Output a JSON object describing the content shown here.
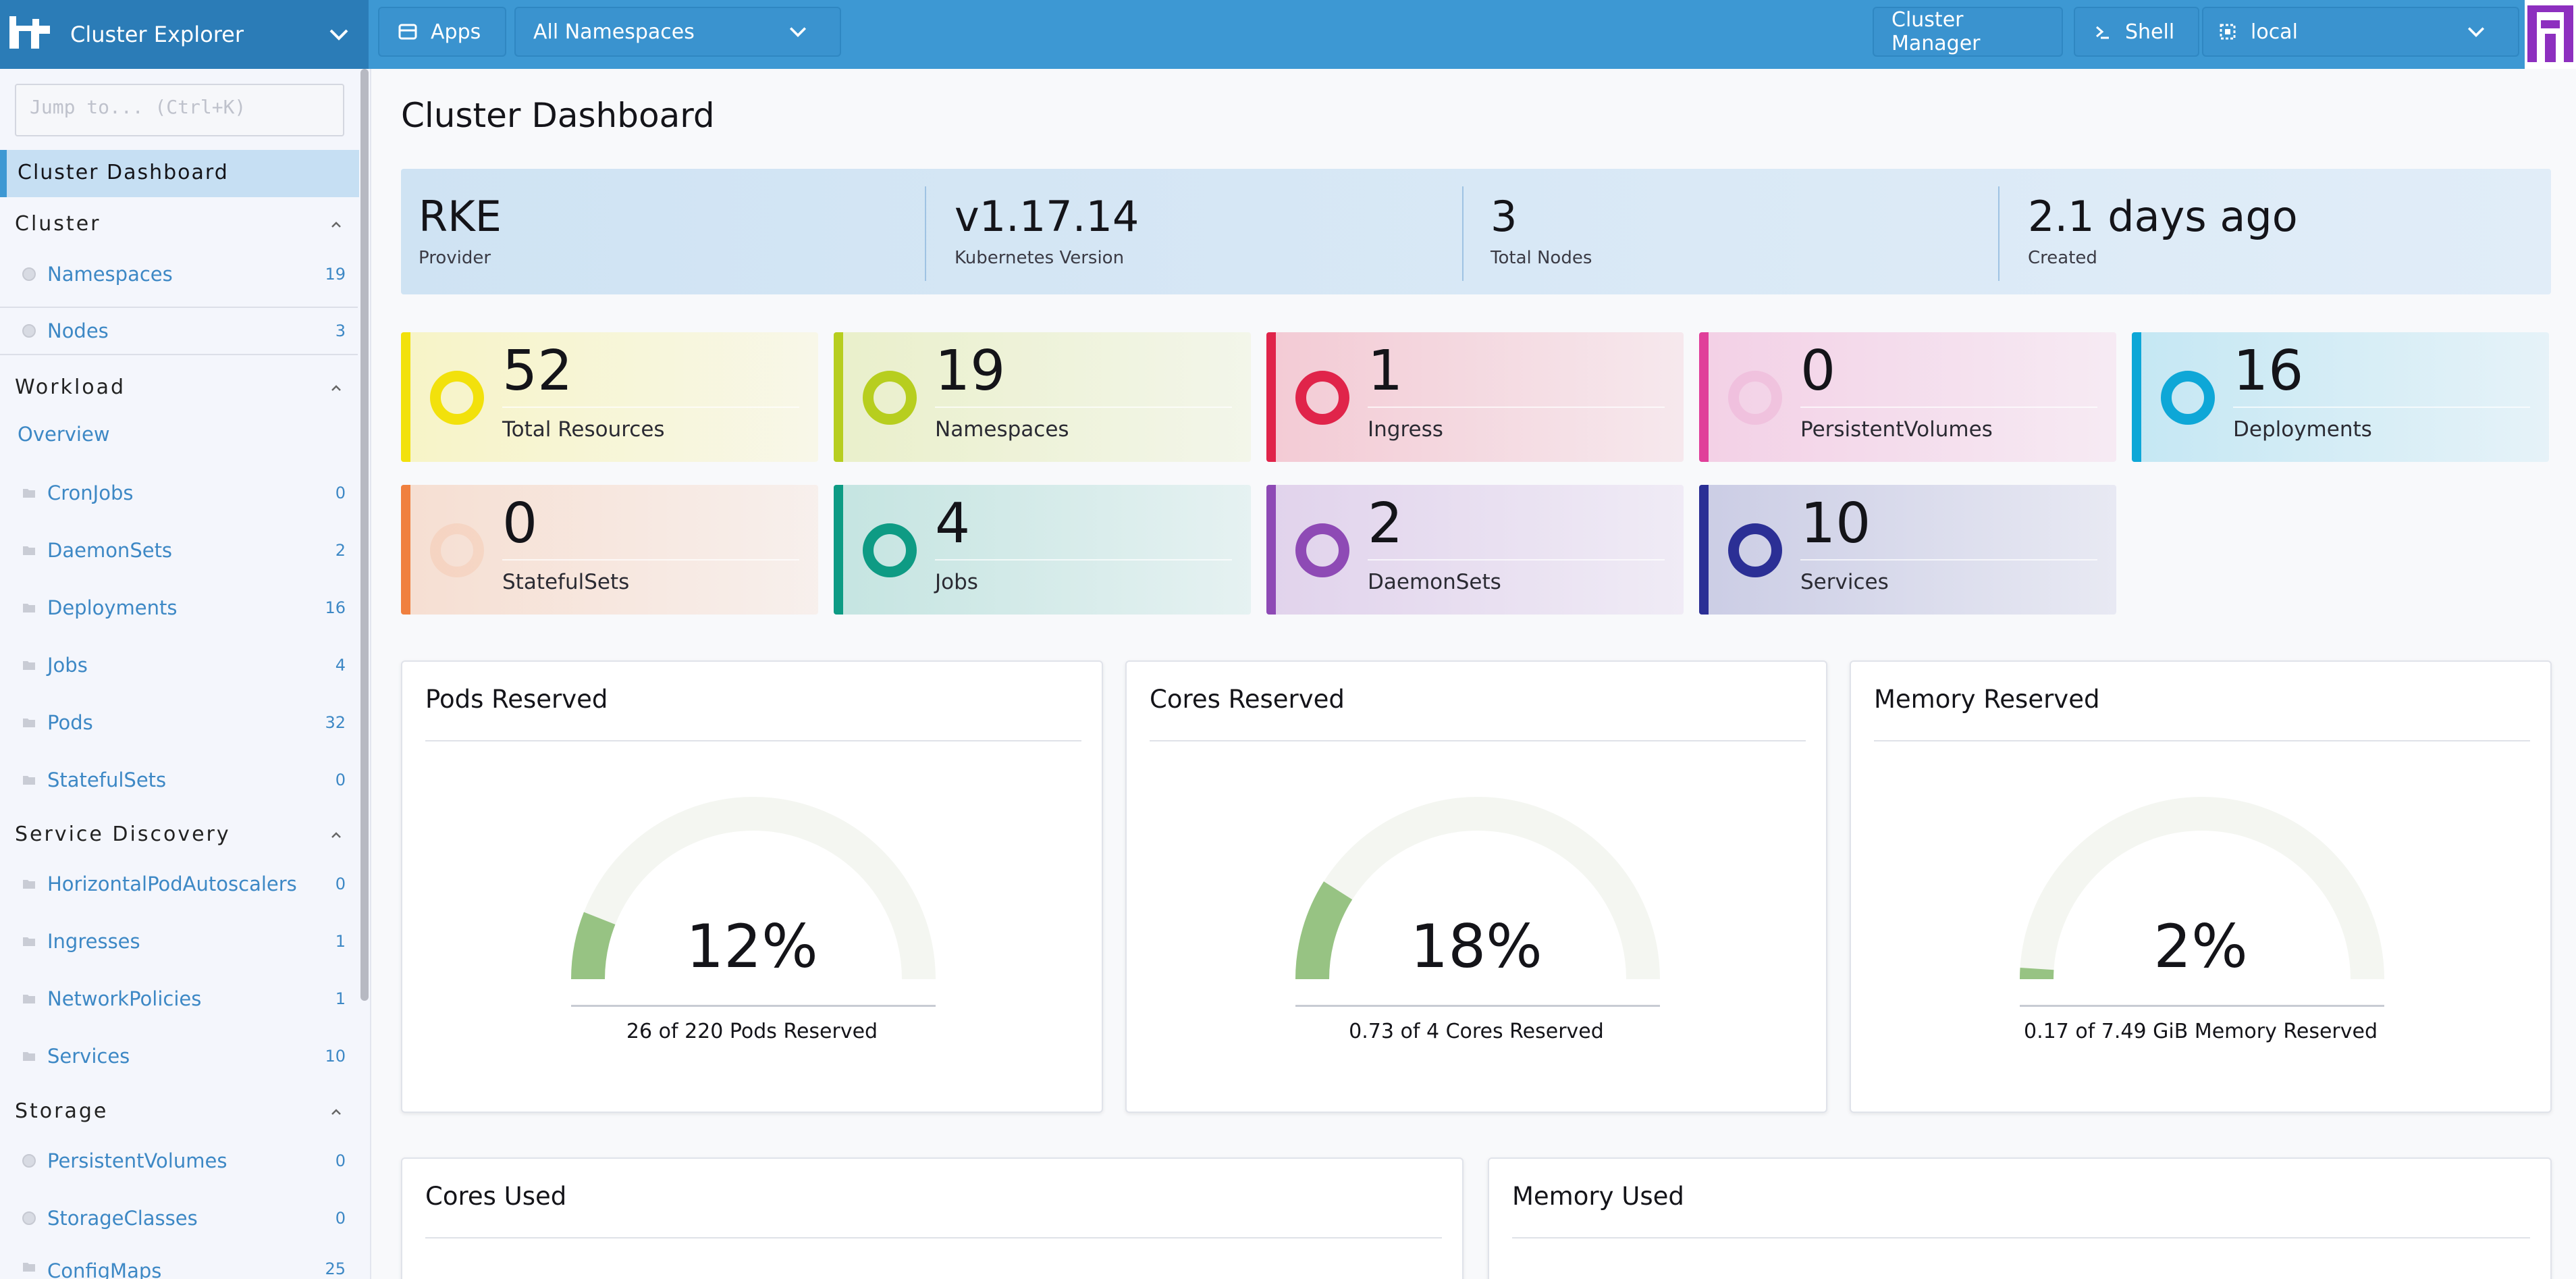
{
  "header": {
    "brand": "Cluster Explorer",
    "apps_label": "Apps",
    "namespace_select": "All Namespaces",
    "cluster_manager_label": "Cluster Manager",
    "shell_label": "Shell",
    "cluster_select": "local",
    "accent_color": "#3d98d3"
  },
  "sidebar": {
    "jump_placeholder": "Jump to... (Ctrl+K)",
    "selected": "Cluster Dashboard",
    "groups": {
      "cluster": "Cluster",
      "workload": "Workload",
      "service_discovery": "Service Discovery",
      "storage": "Storage"
    },
    "cluster_items": [
      {
        "label": "Namespaces",
        "count": "19"
      },
      {
        "label": "Nodes",
        "count": "3"
      }
    ],
    "workload_overview": "Overview",
    "workload_items": [
      {
        "label": "CronJobs",
        "count": "0"
      },
      {
        "label": "DaemonSets",
        "count": "2"
      },
      {
        "label": "Deployments",
        "count": "16"
      },
      {
        "label": "Jobs",
        "count": "4"
      },
      {
        "label": "Pods",
        "count": "32"
      },
      {
        "label": "StatefulSets",
        "count": "0"
      }
    ],
    "sd_items": [
      {
        "label": "HorizontalPodAutoscalers",
        "count": "0"
      },
      {
        "label": "Ingresses",
        "count": "1"
      },
      {
        "label": "NetworkPolicies",
        "count": "1"
      },
      {
        "label": "Services",
        "count": "10"
      }
    ],
    "storage_items": [
      {
        "label": "PersistentVolumes",
        "count": "0"
      },
      {
        "label": "StorageClasses",
        "count": "0"
      },
      {
        "label": "ConfigMaps",
        "count": "25"
      }
    ]
  },
  "main": {
    "title": "Cluster Dashboard",
    "summary": [
      {
        "value": "RKE",
        "label": "Provider"
      },
      {
        "value": "v1.17.14",
        "label": "Kubernetes Version"
      },
      {
        "value": "3",
        "label": "Total Nodes"
      },
      {
        "value": "2.1 days ago",
        "label": "Created"
      }
    ],
    "tiles": [
      {
        "value": "52",
        "label": "Total Resources",
        "color": "#f2e10c"
      },
      {
        "value": "19",
        "label": "Namespaces",
        "color": "#b7ce1f"
      },
      {
        "value": "1",
        "label": "Ingress",
        "color": "#e0244a"
      },
      {
        "value": "0",
        "label": "PersistentVolumes",
        "color": "#e03f9a"
      },
      {
        "value": "16",
        "label": "Deployments",
        "color": "#0ea7d7"
      },
      {
        "value": "0",
        "label": "StatefulSets",
        "color": "#f0803f"
      },
      {
        "value": "4",
        "label": "Jobs",
        "color": "#0e9b84"
      },
      {
        "value": "2",
        "label": "DaemonSets",
        "color": "#8e4ab5"
      },
      {
        "value": "10",
        "label": "Services",
        "color": "#2b2f95"
      }
    ],
    "gauges": [
      {
        "title": "Pods Reserved",
        "percent": "12%",
        "fraction": 0.12,
        "caption": "26 of 220 Pods Reserved"
      },
      {
        "title": "Cores Reserved",
        "percent": "18%",
        "fraction": 0.18,
        "caption": "0.73 of 4 Cores Reserved"
      },
      {
        "title": "Memory Reserved",
        "percent": "2%",
        "fraction": 0.02,
        "caption": "0.17 of 7.49 GiB Memory Reserved"
      }
    ],
    "used_cards": [
      {
        "title": "Cores Used"
      },
      {
        "title": "Memory Used"
      }
    ]
  }
}
